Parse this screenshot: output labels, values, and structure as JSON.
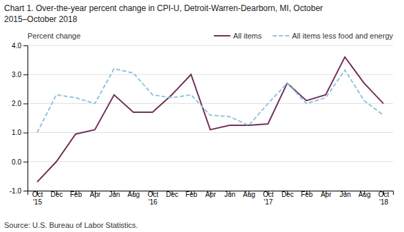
{
  "chart_data": {
    "type": "line",
    "title": [
      "Chart 1. Over-the-year percent change in CPI-U, Detroit-Warren-Dearborn, MI, October",
      "2015–October  2018"
    ],
    "y_label": "Percent change",
    "source": "Source: U.S. Bureau of Labor Statistics.",
    "categories": [
      "Oct\n'15",
      "Dec",
      "Feb",
      "Apr",
      "Jun",
      "Aug",
      "Oct\n'16",
      "Dec",
      "Feb",
      "Apr",
      "Jun",
      "Aug",
      "Oct\n'17",
      "Dec",
      "Feb",
      "Apr",
      "Jun",
      "Aug",
      "Oct\n'18"
    ],
    "series": [
      {
        "name": "All items",
        "color": "#722F5A",
        "line_style": "solid",
        "values": [
          -0.7,
          0.0,
          0.95,
          1.1,
          2.3,
          1.7,
          1.7,
          2.3,
          3.0,
          1.1,
          1.25,
          1.25,
          1.3,
          2.7,
          2.1,
          2.3,
          3.6,
          2.7,
          2.0
        ]
      },
      {
        "name": "All items less food and energy",
        "color": "#92C5DE",
        "line_style": "dashed",
        "values": [
          1.0,
          2.3,
          2.2,
          2.0,
          3.2,
          3.05,
          2.3,
          2.2,
          2.3,
          1.6,
          1.55,
          1.25,
          2.0,
          2.7,
          2.0,
          2.2,
          3.15,
          2.1,
          1.6
        ]
      }
    ],
    "ylim": [
      -1.0,
      4.0
    ],
    "yticks": [
      {
        "value": -1.0,
        "label": "-1.0"
      },
      {
        "value": 0.0,
        "label": "0.0"
      },
      {
        "value": 1.0,
        "label": "1.0"
      },
      {
        "value": 2.0,
        "label": "2.0"
      },
      {
        "value": 3.0,
        "label": "3.0"
      },
      {
        "value": 4.0,
        "label": "4.0"
      }
    ],
    "grid": true,
    "legend": "upper right"
  }
}
